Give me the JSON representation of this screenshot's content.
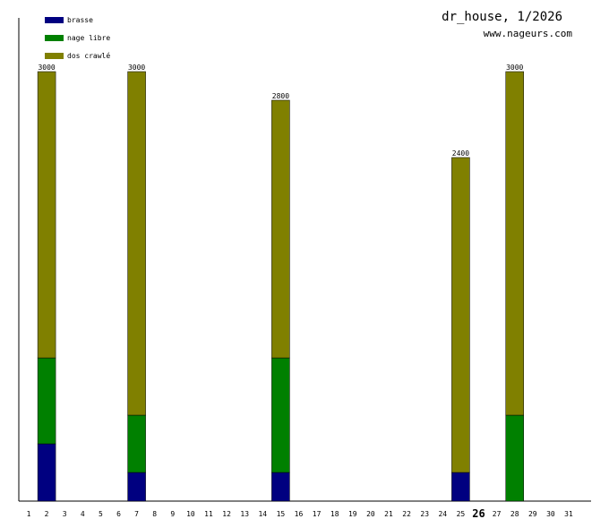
{
  "header": {
    "title": "dr_house, 1/2026",
    "site": "www.nageurs.com"
  },
  "chart_data": {
    "type": "bar",
    "stacked": true,
    "x": [
      1,
      2,
      3,
      4,
      5,
      6,
      7,
      8,
      9,
      10,
      11,
      12,
      13,
      14,
      15,
      16,
      17,
      18,
      19,
      20,
      21,
      22,
      23,
      24,
      25,
      26,
      27,
      28,
      29,
      30,
      31
    ],
    "highlight_day": 26,
    "ylim": [
      0,
      3000
    ],
    "grid": false,
    "legend_position": "top-left",
    "series": [
      {
        "name": "brasse",
        "color": "#000080",
        "values": [
          0,
          400,
          0,
          0,
          0,
          0,
          200,
          0,
          0,
          0,
          0,
          0,
          0,
          0,
          200,
          0,
          0,
          0,
          0,
          0,
          0,
          0,
          0,
          0,
          200,
          0,
          0,
          0,
          0,
          0,
          0
        ]
      },
      {
        "name": "nage libre",
        "color": "#008000",
        "values": [
          0,
          600,
          0,
          0,
          0,
          0,
          400,
          0,
          0,
          0,
          0,
          0,
          0,
          0,
          800,
          0,
          0,
          0,
          0,
          0,
          0,
          0,
          0,
          0,
          0,
          0,
          0,
          600,
          0,
          0,
          0
        ]
      },
      {
        "name": "dos crawlé",
        "color": "#808000",
        "values": [
          0,
          2000,
          0,
          0,
          0,
          0,
          2400,
          0,
          0,
          0,
          0,
          0,
          0,
          0,
          1800,
          0,
          0,
          0,
          0,
          0,
          0,
          0,
          0,
          0,
          2200,
          0,
          0,
          2400,
          0,
          0,
          0
        ]
      }
    ],
    "totals": [
      {
        "day": 2,
        "label": "3000"
      },
      {
        "day": 7,
        "label": "3000"
      },
      {
        "day": 15,
        "label": "2800"
      },
      {
        "day": 25,
        "label": "2400"
      },
      {
        "day": 28,
        "label": "3000"
      }
    ]
  }
}
